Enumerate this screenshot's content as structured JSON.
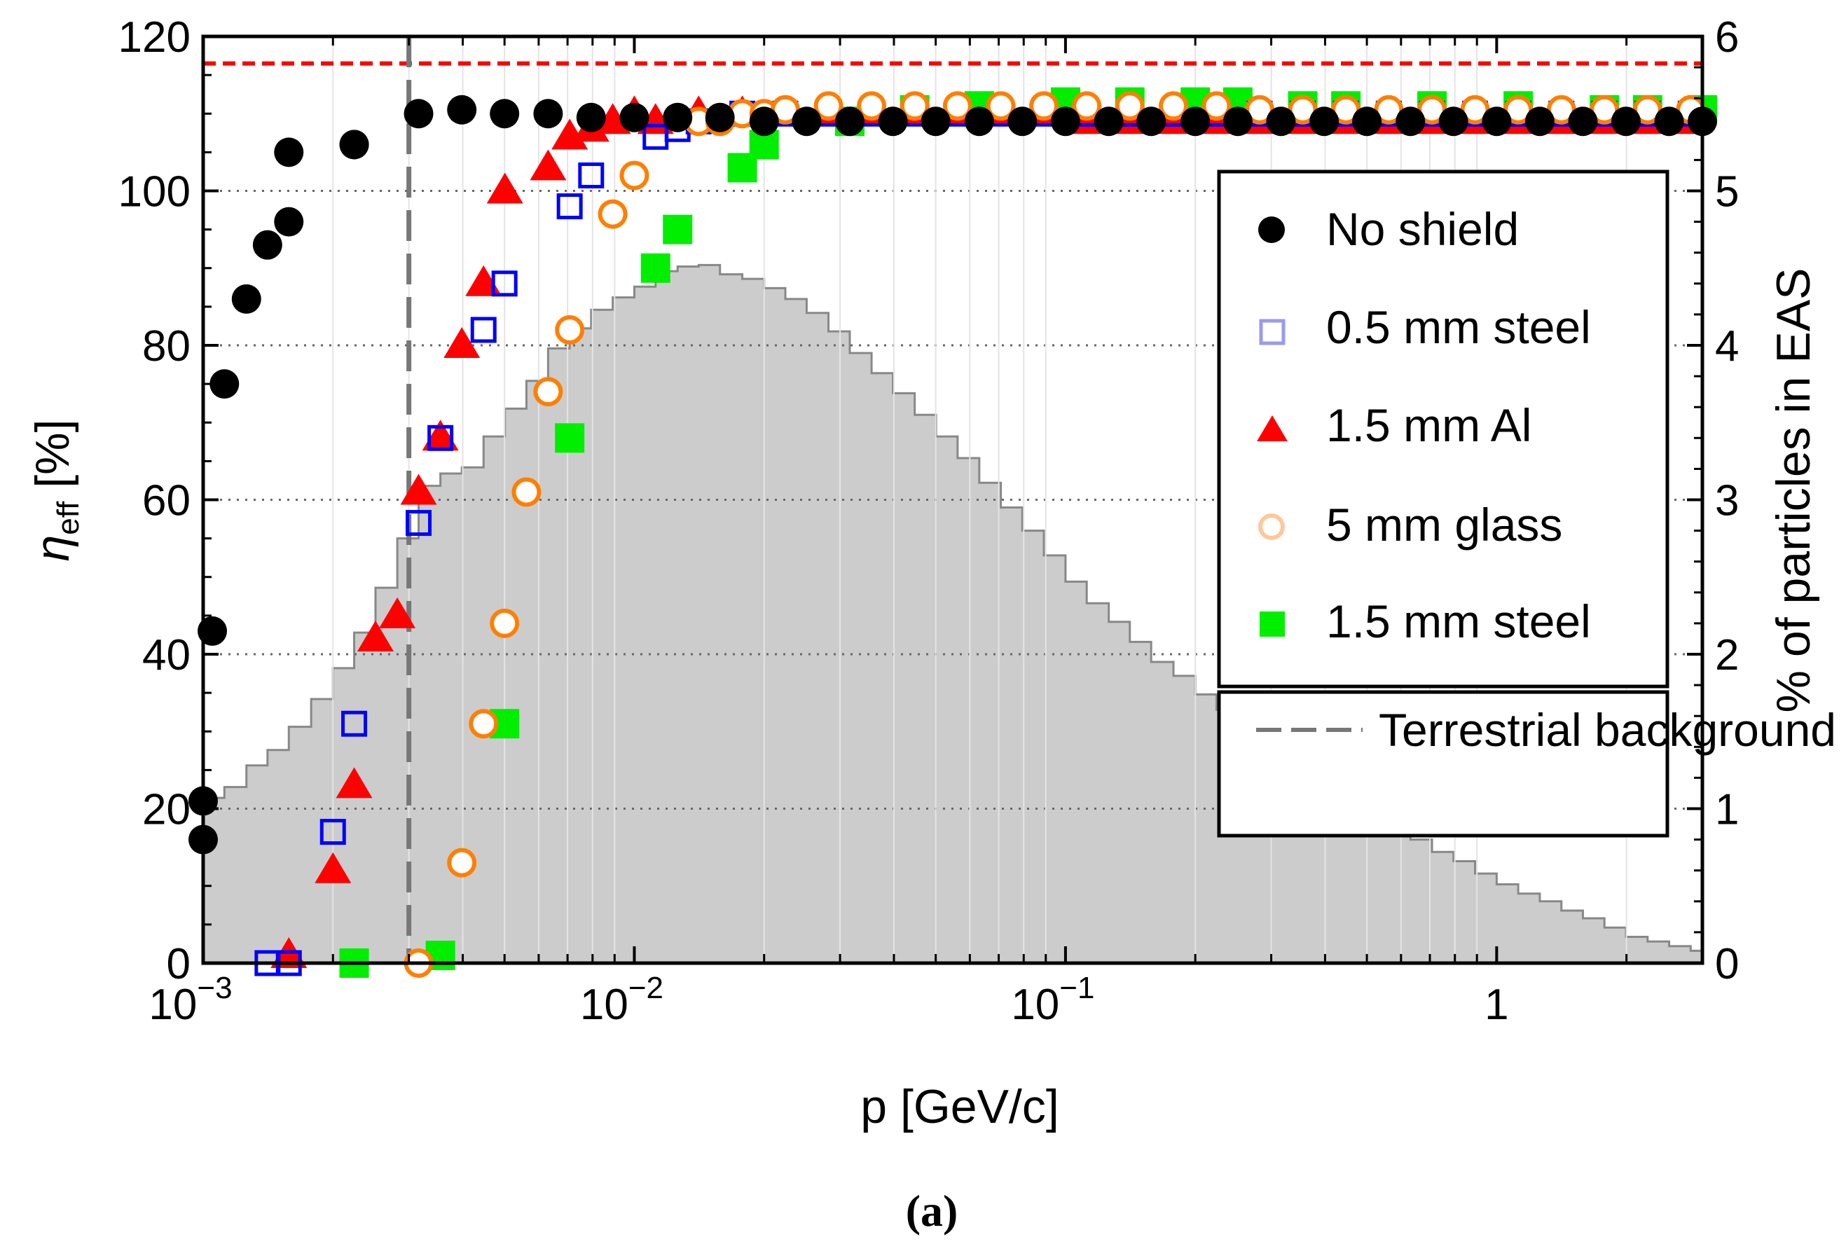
{
  "caption": "(a)",
  "chart_data": {
    "type": "scatter",
    "x_scale": "log",
    "xlim": [
      0.001,
      3
    ],
    "ylim": [
      0,
      120
    ],
    "y2lim": [
      0,
      6
    ],
    "xlabel": "p [GeV/c]",
    "ylabel": {
      "main": "η",
      "sub": "eff",
      "unit": " [%]"
    },
    "y2label": "% of particles in EAS",
    "x_ticks": [
      {
        "value": 0.001,
        "base": "10",
        "exp": "−3"
      },
      {
        "value": 0.01,
        "base": "10",
        "exp": "−2"
      },
      {
        "value": 0.1,
        "base": "10",
        "exp": "−1"
      },
      {
        "value": 1,
        "base": "1",
        "exp": ""
      }
    ],
    "y_ticks": [
      "0",
      "20",
      "40",
      "60",
      "80",
      "100",
      "120"
    ],
    "y2_ticks": [
      "0",
      "1",
      "2",
      "3",
      "4",
      "5",
      "6"
    ],
    "grid": "horizontal dotted",
    "reference_line": {
      "y": 116.5,
      "color": "#ff0000",
      "style": "dashed"
    },
    "vertical_line": {
      "x": 0.003,
      "color": "#777777",
      "style": "dashed",
      "label": "Terrestrial background limit"
    },
    "legend_position": "right",
    "histogram": {
      "name": "% of particles in EAS",
      "axis": "right",
      "color": "#cccccc",
      "edge_color": "#888888",
      "bin_edges": [
        0.001,
        0.00112,
        0.00126,
        0.00141,
        0.00158,
        0.00178,
        0.002,
        0.00224,
        0.00251,
        0.00282,
        0.00316,
        0.00355,
        0.00398,
        0.00447,
        0.00501,
        0.00562,
        0.00631,
        0.00708,
        0.00794,
        0.00891,
        0.01,
        0.0112,
        0.0126,
        0.0141,
        0.0158,
        0.0178,
        0.02,
        0.0224,
        0.0251,
        0.0282,
        0.0316,
        0.0355,
        0.0398,
        0.0447,
        0.0501,
        0.0562,
        0.0631,
        0.0708,
        0.0794,
        0.0891,
        0.1,
        0.112,
        0.126,
        0.141,
        0.158,
        0.178,
        0.2,
        0.224,
        0.251,
        0.282,
        0.316,
        0.355,
        0.398,
        0.447,
        0.501,
        0.562,
        0.631,
        0.708,
        0.794,
        0.891,
        1,
        1.122,
        1.259,
        1.413,
        1.585,
        1.778,
        1.995,
        2.239,
        2.512,
        2.818,
        3.0
      ],
      "values": [
        1.07,
        1.14,
        1.28,
        1.38,
        1.53,
        1.71,
        1.91,
        2.14,
        2.43,
        2.75,
        3.09,
        3.17,
        3.21,
        3.41,
        3.59,
        3.77,
        3.98,
        4.11,
        4.23,
        4.31,
        4.38,
        4.48,
        4.51,
        4.52,
        4.46,
        4.43,
        4.37,
        4.3,
        4.21,
        4.09,
        3.95,
        3.82,
        3.69,
        3.55,
        3.41,
        3.27,
        3.11,
        2.95,
        2.8,
        2.64,
        2.47,
        2.33,
        2.21,
        2.08,
        1.95,
        1.86,
        1.74,
        1.64,
        1.54,
        1.44,
        1.35,
        1.24,
        1.14,
        1.05,
        0.97,
        0.89,
        0.8,
        0.72,
        0.66,
        0.58,
        0.51,
        0.45,
        0.4,
        0.34,
        0.29,
        0.23,
        0.17,
        0.14,
        0.11,
        0.08
      ]
    },
    "series": [
      {
        "name": "No shield",
        "marker": "filled-circle",
        "color": "#000000",
        "x": [
          0.001,
          0.001,
          0.00105,
          0.00112,
          0.00126,
          0.00141,
          0.00158,
          0.00158,
          0.00224,
          0.00224,
          0.00316,
          0.00398,
          0.005,
          0.00631,
          0.00794,
          0.01,
          0.0126,
          0.0158,
          0.02,
          0.0251,
          0.0316,
          0.0398,
          0.05,
          0.0631,
          0.0794,
          0.1,
          0.126,
          0.158,
          0.2,
          0.251,
          0.316,
          0.398,
          0.5,
          0.631,
          0.794,
          1,
          1.259,
          1.585,
          1.995,
          2.512,
          3.0
        ],
        "y": [
          16,
          21,
          43,
          75,
          86,
          93,
          96,
          105,
          106,
          106,
          110,
          110.5,
          110,
          110,
          109.5,
          109.5,
          109.5,
          109.5,
          109,
          109,
          109,
          109,
          109,
          109,
          109,
          109,
          109,
          109,
          109,
          109,
          109,
          109,
          109,
          109,
          109,
          109,
          109,
          109,
          109,
          109,
          109
        ]
      },
      {
        "name": "0.5 mm steel",
        "marker": "open-square",
        "color": "#0000ff",
        "x": [
          0.00141,
          0.00158,
          0.002,
          0.00224,
          0.00316,
          0.00355,
          0.00447,
          0.005,
          0.00708,
          0.00794,
          0.0112,
          0.0126,
          0.0141,
          0.0178,
          0.0224,
          0.0282,
          0.0355,
          0.0447,
          0.0562,
          0.0708,
          0.0891,
          0.112,
          0.141,
          0.178,
          0.224,
          0.282,
          0.355,
          0.447,
          0.562,
          0.708,
          0.891,
          1.122,
          1.413,
          1.778,
          2.239,
          2.818
        ],
        "y": [
          0,
          0,
          17,
          31,
          57,
          68,
          82,
          88,
          98,
          102,
          107,
          108,
          109,
          110,
          110,
          110,
          110,
          110,
          110,
          110,
          110,
          110,
          110,
          110,
          110,
          110,
          110,
          110,
          110,
          110,
          110,
          110,
          110,
          110,
          110,
          110
        ]
      },
      {
        "name": "1.5 mm Al",
        "marker": "filled-triangle",
        "color": "#ff0000",
        "x": [
          0.00158,
          0.002,
          0.00224,
          0.00251,
          0.00282,
          0.00316,
          0.00355,
          0.00398,
          0.00447,
          0.00501,
          0.00631,
          0.00708,
          0.00794,
          0.00891,
          0.01,
          0.0112,
          0.0141,
          0.0178,
          0.0224,
          0.0282,
          0.0355,
          0.0447,
          0.0562,
          0.0708,
          0.0891,
          0.112,
          0.141,
          0.178,
          0.224,
          0.282,
          0.355,
          0.447,
          0.562,
          0.708,
          0.891,
          1.122,
          1.413,
          1.778,
          2.239,
          2.818
        ],
        "y": [
          1,
          12,
          23,
          42,
          45,
          61,
          68,
          80,
          88,
          100,
          103,
          107,
          108,
          109,
          110,
          109,
          110,
          110,
          110,
          110,
          110,
          110,
          110,
          110,
          110,
          109,
          109,
          109,
          109,
          109,
          109,
          109,
          109,
          109,
          109,
          109,
          109,
          109,
          109,
          109
        ]
      },
      {
        "name": "5 mm glass",
        "marker": "open-circle",
        "color": "#ff7f00",
        "x": [
          0.00316,
          0.00398,
          0.00447,
          0.005,
          0.00562,
          0.00631,
          0.00708,
          0.00891,
          0.01,
          0.0141,
          0.0158,
          0.0178,
          0.02,
          0.0224,
          0.0282,
          0.0355,
          0.0447,
          0.0562,
          0.0708,
          0.0891,
          0.112,
          0.141,
          0.178,
          0.224,
          0.282,
          0.355,
          0.447,
          0.562,
          0.708,
          0.891,
          1.122,
          1.413,
          1.778,
          2.239,
          2.818
        ],
        "y": [
          0,
          13,
          31,
          44,
          61,
          74,
          82,
          97,
          102,
          109,
          109,
          110,
          110,
          110.5,
          111,
          111,
          111,
          111,
          111,
          111,
          111,
          111,
          111,
          111,
          110.5,
          110.5,
          110.5,
          110.5,
          110.5,
          110.5,
          110.5,
          110.5,
          110.5,
          110.5,
          110.5
        ]
      },
      {
        "name": "1.5 mm steel",
        "marker": "filled-square",
        "color": "#00ee00",
        "x": [
          0.00224,
          0.00355,
          0.005,
          0.00708,
          0.0112,
          0.0126,
          0.0178,
          0.02,
          0.0316,
          0.0447,
          0.0631,
          0.1,
          0.141,
          0.2,
          0.251,
          0.355,
          0.447,
          0.708,
          1.122,
          1.778,
          2.239,
          3.0
        ],
        "y": [
          0,
          1,
          31,
          68,
          90,
          95,
          103,
          106,
          109,
          110.5,
          111,
          111.5,
          111.5,
          111.5,
          111.5,
          111,
          111,
          111,
          111,
          110.5,
          110.5,
          110.5
        ]
      }
    ]
  }
}
